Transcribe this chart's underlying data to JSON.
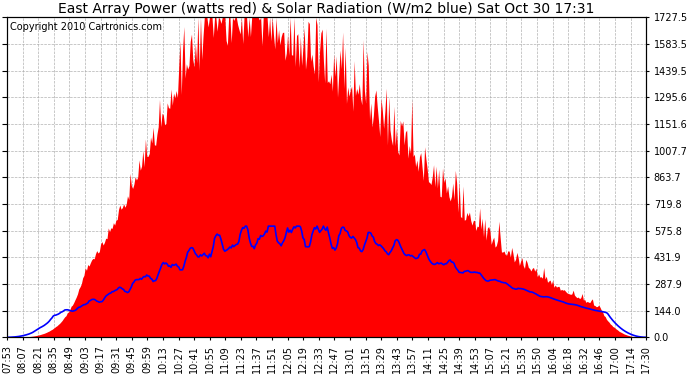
{
  "title": "East Array Power (watts red) & Solar Radiation (W/m2 blue) Sat Oct 30 17:31",
  "copyright": "Copyright 2010 Cartronics.com",
  "yticks": [
    0.0,
    144.0,
    287.9,
    431.9,
    575.8,
    719.8,
    863.7,
    1007.7,
    1151.6,
    1295.6,
    1439.5,
    1583.5,
    1727.5
  ],
  "ymax": 1727.5,
  "ymin": 0.0,
  "bg_color": "#ffffff",
  "plot_bg_color": "#ffffff",
  "grid_color": "#aaaaaa",
  "bar_color": "red",
  "line_color": "blue",
  "title_fontsize": 10,
  "copyright_fontsize": 7,
  "tick_fontsize": 7,
  "time_labels": [
    "07:53",
    "08:07",
    "08:21",
    "08:35",
    "08:49",
    "09:03",
    "09:17",
    "09:31",
    "09:45",
    "09:59",
    "10:13",
    "10:27",
    "10:41",
    "10:55",
    "11:09",
    "11:23",
    "11:37",
    "11:51",
    "12:05",
    "12:19",
    "12:33",
    "12:47",
    "13:01",
    "13:15",
    "13:29",
    "13:43",
    "13:57",
    "14:11",
    "14:25",
    "14:39",
    "14:53",
    "15:07",
    "15:21",
    "15:35",
    "15:50",
    "16:04",
    "16:18",
    "16:32",
    "16:46",
    "17:00",
    "17:14",
    "17:30"
  ]
}
